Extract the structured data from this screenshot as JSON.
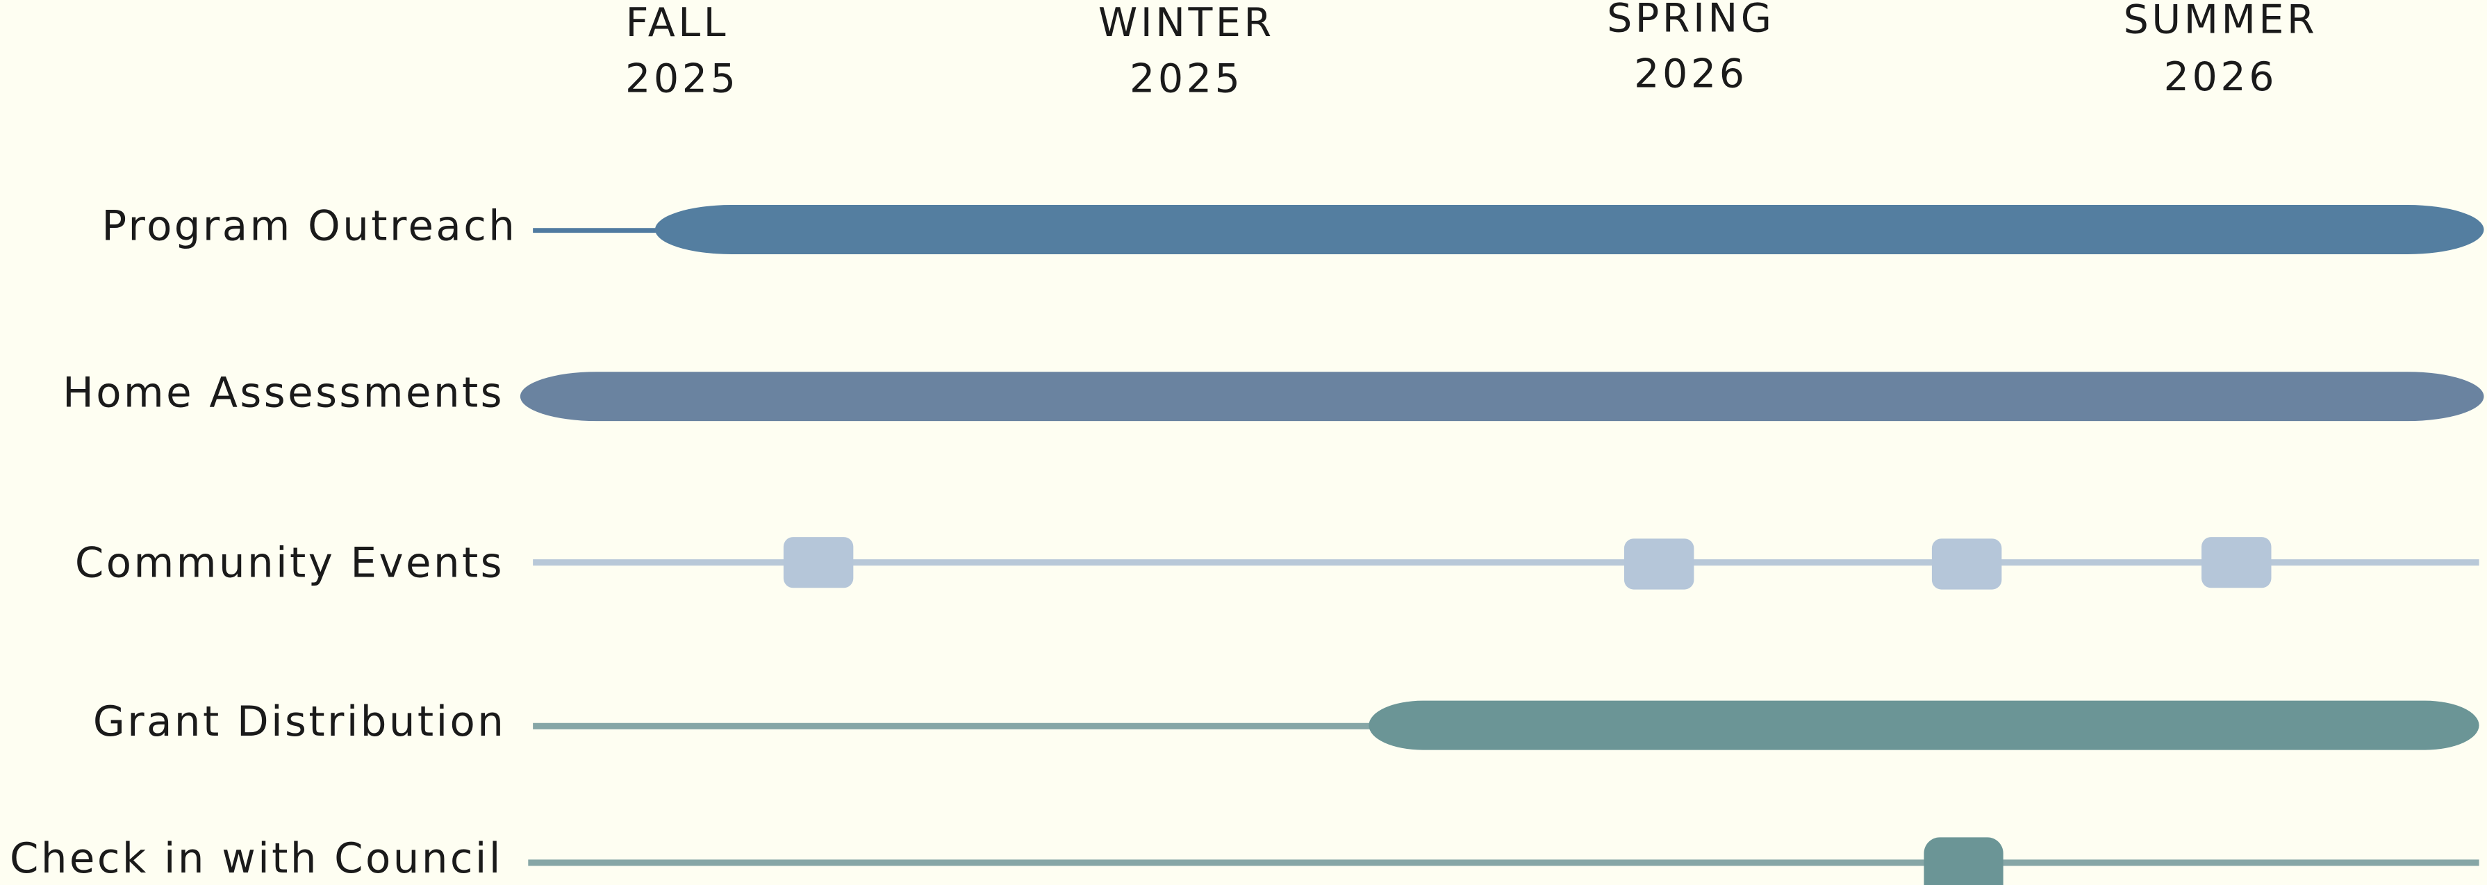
{
  "headers": [
    {
      "season": "FALL",
      "year": "2025"
    },
    {
      "season": "WINTER",
      "year": "2025"
    },
    {
      "season": "SPRING",
      "year": "2026"
    },
    {
      "season": "SUMMER",
      "year": "2026"
    }
  ],
  "rows": [
    {
      "label": "Program Outreach"
    },
    {
      "label": "Home Assessments"
    },
    {
      "label": "Community Events"
    },
    {
      "label": "Grant Distribution"
    },
    {
      "label": "Check in with Council"
    }
  ]
}
